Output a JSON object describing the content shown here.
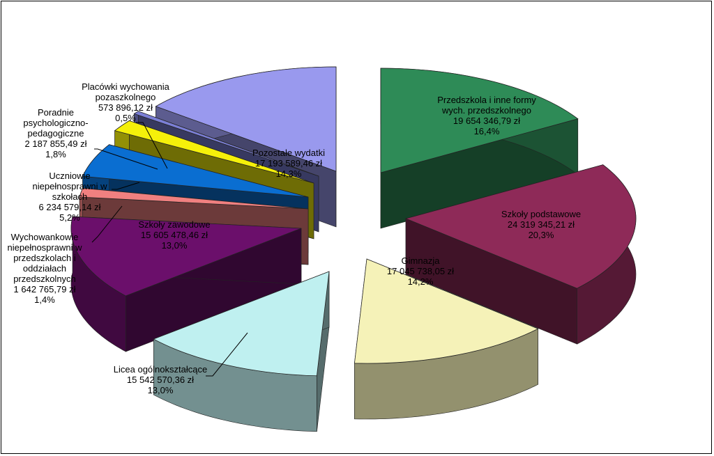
{
  "chart_data": {
    "type": "pie",
    "style": "3d-exploded",
    "slices": [
      {
        "name": "Przedszkola i inne formy wych. przedszkolnego",
        "label_lines": [
          "Przedszkola i inne formy",
          "wych. przedszkolnego"
        ],
        "value_text": "19 654 346,79 zł",
        "percent_text": "16,4%",
        "value": 19654346.79,
        "percent": 16.4,
        "color": "#2e8b57"
      },
      {
        "name": "Szkoły podstawowe",
        "label_lines": [
          "Szkoły podstawowe"
        ],
        "value_text": "24 319 345,21 zł",
        "percent_text": "20,3%",
        "value": 24319345.21,
        "percent": 20.3,
        "color": "#8e2a58"
      },
      {
        "name": "Gimnazja",
        "label_lines": [
          "Gimnazja"
        ],
        "value_text": "17 045 738,05 zł",
        "percent_text": "14,2%",
        "value": 17045738.05,
        "percent": 14.2,
        "color": "#f5f2b8"
      },
      {
        "name": "Licea ogólnokształcące",
        "label_lines": [
          "Licea ogólnokształcące"
        ],
        "value_text": "15 542 570,36 zł",
        "percent_text": "13,0%",
        "value": 15542570.36,
        "percent": 13.0,
        "color": "#bff0f0"
      },
      {
        "name": "Szkoły zawodowe",
        "label_lines": [
          "Szkoły zawodowe"
        ],
        "value_text": "15 605 478,46 zł",
        "percent_text": "13,0%",
        "value": 15605478.46,
        "percent": 13.0,
        "color": "#6b0f6b"
      },
      {
        "name": "Wychowankowie niepełnosprawni w przedszkolach i oddziałach przedszkolnych",
        "label_lines": [
          "Wychowankowie",
          "niepełnosprawni w",
          "przedszkolach i",
          "oddziałach",
          "przedszkolnych"
        ],
        "value_text": "1 642 765,79 zł",
        "percent_text": "1,4%",
        "value": 1642765.79,
        "percent": 1.4,
        "color": "#f08080"
      },
      {
        "name": "Uczniowie niepełnosprawni w szkołach",
        "label_lines": [
          "Uczniowie",
          "niepełnosprawni w",
          "szkołach"
        ],
        "value_text": "6 234 579,14 zł",
        "percent_text": "5,2%",
        "value": 6234579.14,
        "percent": 5.2,
        "color": "#0a6ed1"
      },
      {
        "name": "Poradnie psychologiczno-pedagogiczne",
        "label_lines": [
          "Poradnie",
          "psychologiczno-",
          "pedagogiczne"
        ],
        "value_text": "2 187 855,49 zł",
        "percent_text": "1,8%",
        "value": 2187855.49,
        "percent": 1.8,
        "color": "#f5f00a"
      },
      {
        "name": "Placówki wychowania pozaszkolnego",
        "label_lines": [
          "Placówki wychowania",
          "pozaszkolnego"
        ],
        "value_text": "573 896,12 zł",
        "percent_text": "0,5%",
        "value": 573896.12,
        "percent": 0.5,
        "color": "#7b7fd6"
      },
      {
        "name": "Pozostałe wydatki",
        "label_lines": [
          "Pozostałe wydatki"
        ],
        "value_text": "17 193 589,46 zł",
        "percent_text": "14,3%",
        "value": 17193589.46,
        "percent": 14.3,
        "color": "#9999ee"
      }
    ]
  }
}
